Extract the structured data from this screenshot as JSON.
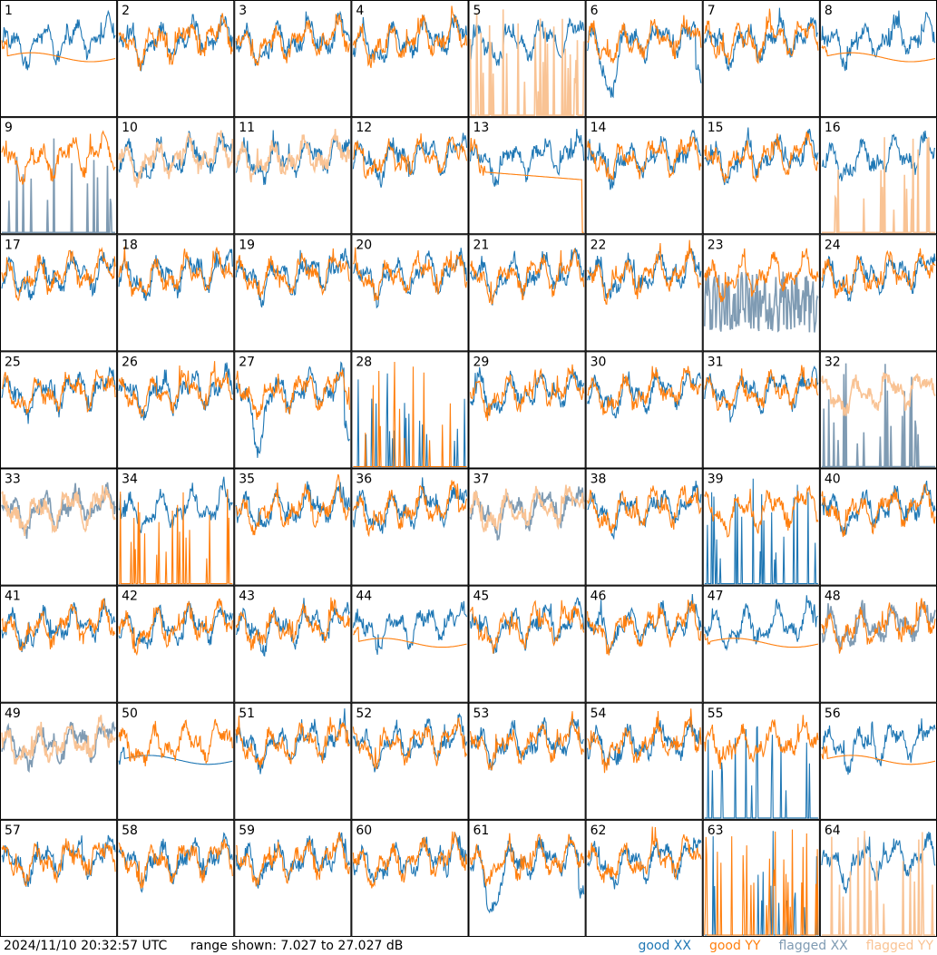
{
  "chart_data": {
    "type": "line",
    "panel_count": 64,
    "panel_labels": [
      "1",
      "2",
      "3",
      "4",
      "5",
      "6",
      "7",
      "8",
      "9",
      "10",
      "11",
      "12",
      "13",
      "14",
      "15",
      "16",
      "17",
      "18",
      "19",
      "20",
      "21",
      "22",
      "23",
      "24",
      "25",
      "26",
      "27",
      "28",
      "29",
      "30",
      "31",
      "32",
      "33",
      "34",
      "35",
      "36",
      "37",
      "38",
      "39",
      "40",
      "41",
      "42",
      "43",
      "44",
      "45",
      "46",
      "47",
      "48",
      "49",
      "50",
      "51",
      "52",
      "53",
      "54",
      "55",
      "56",
      "57",
      "58",
      "59",
      "60",
      "61",
      "62",
      "63",
      "64"
    ],
    "ylim": [
      7.027,
      27.027
    ],
    "y_unit": "dB",
    "series_legend": [
      {
        "name": "good XX",
        "color": "#1f77b4"
      },
      {
        "name": "good YY",
        "color": "#ff7f0e"
      },
      {
        "name": "flagged XX",
        "color": "#7f9bb3"
      },
      {
        "name": "flagged YY",
        "color": "#f9c394"
      }
    ],
    "panel_status": {
      "5": {
        "xx": "good",
        "yy": "flagged",
        "yy_mode": "spikes"
      },
      "9": {
        "xx": "flagged",
        "yy": "good",
        "xx_mode": "spikes"
      },
      "10": {
        "xx": "good",
        "yy": "flagged"
      },
      "11": {
        "xx": "good",
        "yy": "flagged"
      },
      "13": {
        "xx": "good",
        "yy": "good",
        "yy_mode": "flat"
      },
      "16": {
        "xx": "good",
        "yy": "flagged",
        "yy_mode": "spikes"
      },
      "23": {
        "xx": "flagged",
        "yy": "good",
        "xx_mode": "noisy-low"
      },
      "28": {
        "xx": "good",
        "yy": "good",
        "xx_mode": "spikes",
        "yy_mode": "spikes"
      },
      "32": {
        "xx": "flagged",
        "yy": "flagged",
        "xx_mode": "spikes"
      },
      "33": {
        "xx": "flagged",
        "yy": "flagged"
      },
      "34": {
        "xx": "good",
        "yy": "good",
        "yy_mode": "spikes"
      },
      "37": {
        "xx": "flagged",
        "yy": "flagged"
      },
      "39": {
        "xx": "good",
        "yy": "good",
        "xx_mode": "spikes"
      },
      "48": {
        "xx": "flagged",
        "yy": "good"
      },
      "49": {
        "xx": "flagged",
        "yy": "flagged"
      },
      "55": {
        "xx": "good",
        "yy": "good",
        "xx_mode": "spikes"
      },
      "63": {
        "xx": "good",
        "yy": "good",
        "xx_mode": "spikes",
        "yy_mode": "spikes"
      },
      "64": {
        "xx": "good",
        "yy": "flagged",
        "yy_mode": "spikes"
      },
      "27": {
        "xx": "good",
        "yy": "good",
        "xx_mode": "dip"
      },
      "6": {
        "xx": "good",
        "yy": "good",
        "xx_mode": "dip"
      },
      "61": {
        "xx": "good",
        "yy": "good",
        "xx_mode": "dip"
      },
      "44": {
        "xx": "good",
        "yy": "good",
        "yy_mode": "smooth"
      },
      "47": {
        "xx": "good",
        "yy": "good",
        "yy_mode": "smooth"
      },
      "1": {
        "xx": "good",
        "yy": "good",
        "yy_mode": "smooth"
      },
      "8": {
        "xx": "good",
        "yy": "good",
        "yy_mode": "smooth"
      },
      "50": {
        "xx": "good",
        "yy": "good",
        "xx_mode": "smooth"
      },
      "56": {
        "xx": "good",
        "yy": "good",
        "yy_mode": "smooth"
      }
    }
  },
  "footer": {
    "timestamp": "2024/11/10 20:32:57 UTC",
    "range_text": "range shown: 7.027 to 27.027 dB"
  },
  "legend": {
    "good_xx": "good XX",
    "good_yy": "good YY",
    "flagged_xx": "flagged XX",
    "flagged_yy": "flagged YY"
  }
}
